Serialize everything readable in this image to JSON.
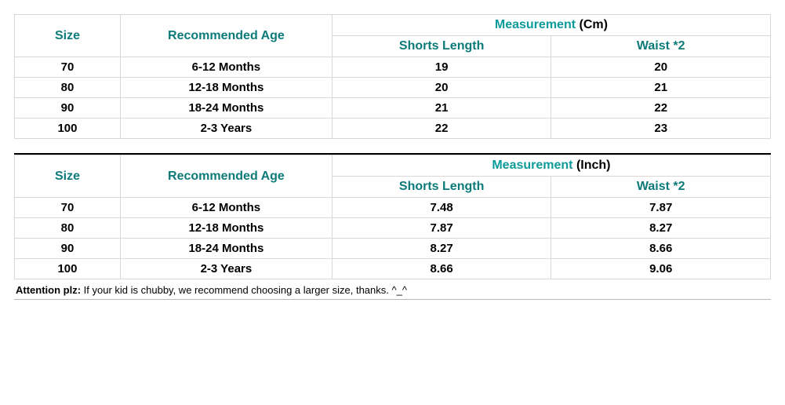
{
  "tables": [
    {
      "headers": {
        "size": "Size",
        "age": "Recommended Age",
        "measurement_label": "Measurement",
        "measurement_unit": " (Cm)",
        "col1": "Shorts Length",
        "col2": "Waist *2"
      },
      "rows": [
        {
          "size": "70",
          "age": "6-12 Months",
          "c1": "19",
          "c2": "20"
        },
        {
          "size": "80",
          "age": "12-18 Months",
          "c1": "20",
          "c2": "21"
        },
        {
          "size": "90",
          "age": "18-24 Months",
          "c1": "21",
          "c2": "22"
        },
        {
          "size": "100",
          "age": "2-3 Years",
          "c1": "22",
          "c2": "23"
        }
      ]
    },
    {
      "headers": {
        "size": "Size",
        "age": "Recommended Age",
        "measurement_label": "Measurement",
        "measurement_unit": " (Inch)",
        "col1": "Shorts Length",
        "col2": "Waist *2"
      },
      "rows": [
        {
          "size": "70",
          "age": "6-12 Months",
          "c1": "7.48",
          "c2": "7.87"
        },
        {
          "size": "80",
          "age": "12-18 Months",
          "c1": "7.87",
          "c2": "8.27"
        },
        {
          "size": "90",
          "age": "18-24 Months",
          "c1": "8.27",
          "c2": "8.66"
        },
        {
          "size": "100",
          "age": "2-3 Years",
          "c1": "8.66",
          "c2": "9.06"
        }
      ]
    }
  ],
  "attention": {
    "label": "Attention plz:",
    "text": " If your kid is chubby, we recommend choosing a larger size, thanks. ^_^"
  },
  "colors": {
    "header_text": "#0d7a7a",
    "border": "#d8d8d8",
    "divider": "#000000",
    "body_text": "#000000"
  }
}
